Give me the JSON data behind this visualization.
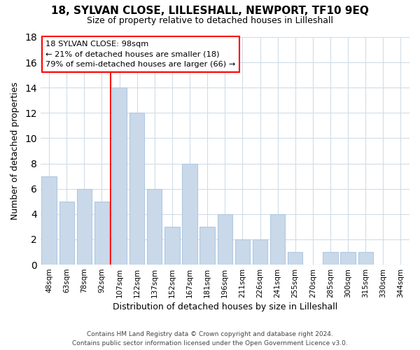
{
  "title": "18, SYLVAN CLOSE, LILLESHALL, NEWPORT, TF10 9EQ",
  "subtitle": "Size of property relative to detached houses in Lilleshall",
  "xlabel": "Distribution of detached houses by size in Lilleshall",
  "ylabel": "Number of detached properties",
  "bar_labels": [
    "48sqm",
    "63sqm",
    "78sqm",
    "92sqm",
    "107sqm",
    "122sqm",
    "137sqm",
    "152sqm",
    "167sqm",
    "181sqm",
    "196sqm",
    "211sqm",
    "226sqm",
    "241sqm",
    "255sqm",
    "270sqm",
    "285sqm",
    "300sqm",
    "315sqm",
    "330sqm",
    "344sqm"
  ],
  "bar_values": [
    7,
    5,
    6,
    5,
    14,
    12,
    6,
    3,
    8,
    3,
    4,
    2,
    2,
    4,
    1,
    0,
    1,
    1,
    1,
    0,
    0
  ],
  "bar_color": "#c9d9ea",
  "bar_edgecolor": "#b0c8e0",
  "ylim": [
    0,
    18
  ],
  "yticks": [
    0,
    2,
    4,
    6,
    8,
    10,
    12,
    14,
    16,
    18
  ],
  "annotation_title": "18 SYLVAN CLOSE: 98sqm",
  "annotation_line1": "← 21% of detached houses are smaller (18)",
  "annotation_line2": "79% of semi-detached houses are larger (66) →",
  "vline_index": 3.9,
  "footer1": "Contains HM Land Registry data © Crown copyright and database right 2024.",
  "footer2": "Contains public sector information licensed under the Open Government Licence v3.0.",
  "background_color": "#ffffff",
  "grid_color": "#d0dce8",
  "title_fontsize": 11,
  "subtitle_fontsize": 9,
  "tick_fontsize": 7.5,
  "axis_label_fontsize": 9
}
